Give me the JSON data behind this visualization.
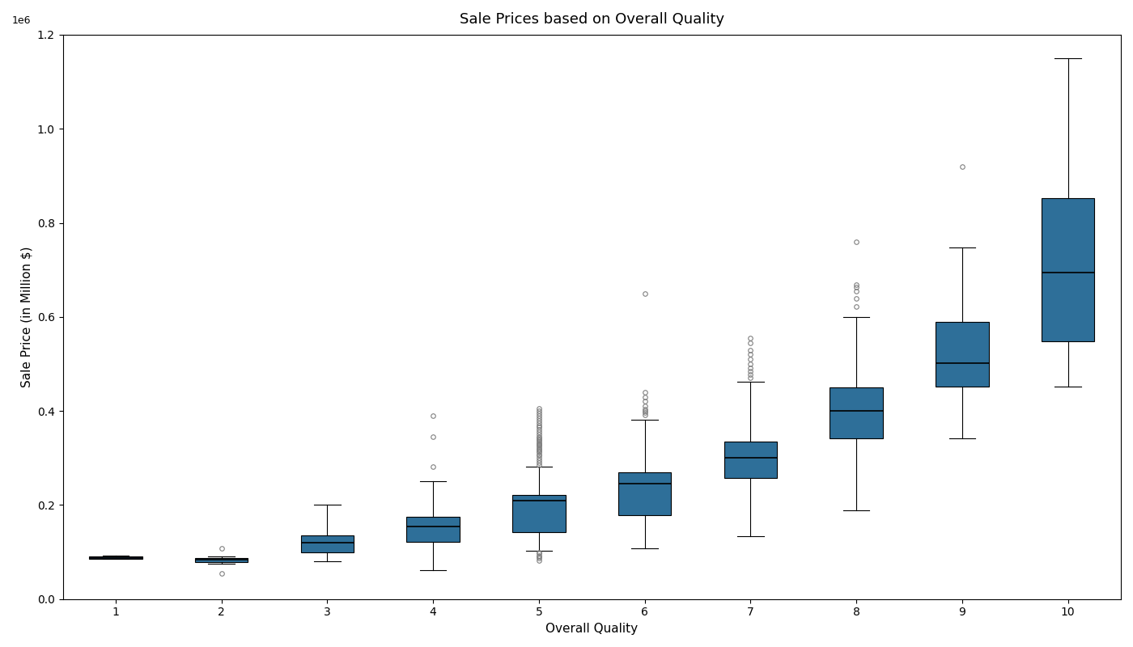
{
  "title": "Sale Prices based on Overall Quality",
  "xlabel": "Overall Quality",
  "ylabel": "Sale Price (in Million $)",
  "box_color": "#2e6f99",
  "background_color": "white",
  "ylim": [
    0,
    1200000
  ],
  "yticks": [
    0,
    200000,
    400000,
    600000,
    800000,
    1000000,
    1200000
  ],
  "quality_levels": [
    1,
    2,
    3,
    4,
    5,
    6,
    7,
    8,
    9,
    10
  ],
  "xlim": [
    0.5,
    10.5
  ],
  "box_width": 0.5,
  "box_data": {
    "1": {
      "q1": 86000,
      "median": 88000,
      "q3": 90000,
      "whislo": 85000,
      "whishi": 92000,
      "fliers": []
    },
    "2": {
      "q1": 78000,
      "median": 83000,
      "q3": 88000,
      "whislo": 76000,
      "whishi": 91000,
      "fliers": [
        107500,
        55000
      ]
    },
    "3": {
      "q1": 100000,
      "median": 120000,
      "q3": 135000,
      "whislo": 80000,
      "whishi": 200000,
      "fliers": []
    },
    "4": {
      "q1": 122000,
      "median": 155000,
      "q3": 175000,
      "whislo": 62000,
      "whishi": 250000,
      "fliers": [
        282000,
        345000,
        390000
      ]
    },
    "5": {
      "q1": 143000,
      "median": 210000,
      "q3": 222000,
      "whislo": 103000,
      "whishi": 282000,
      "fliers": [
        285000,
        290000,
        295000,
        300000,
        305000,
        308000,
        312000,
        315000,
        318000,
        320000,
        323000,
        326000,
        328000,
        330000,
        332000,
        335000,
        338000,
        340000,
        343000,
        346000,
        350000,
        355000,
        360000,
        365000,
        370000,
        375000,
        380000,
        385000,
        390000,
        395000,
        400000,
        405000,
        82000,
        88000,
        91000,
        93000,
        97000,
        100000
      ]
    },
    "6": {
      "q1": 178000,
      "median": 245000,
      "q3": 270000,
      "whislo": 108000,
      "whishi": 382000,
      "fliers": [
        392000,
        396000,
        400000,
        404000,
        410000,
        420000,
        430000,
        440000,
        650000
      ]
    },
    "7": {
      "q1": 258000,
      "median": 300000,
      "q3": 335000,
      "whislo": 133000,
      "whishi": 462000,
      "fliers": [
        470000,
        478000,
        485000,
        492000,
        500000,
        510000,
        520000,
        530000,
        545000,
        555000
      ]
    },
    "8": {
      "q1": 342000,
      "median": 400000,
      "q3": 450000,
      "whislo": 188000,
      "whishi": 600000,
      "fliers": [
        622000,
        640000,
        655000,
        663000,
        668000,
        760000
      ]
    },
    "9": {
      "q1": 452000,
      "median": 502000,
      "q3": 590000,
      "whislo": 342000,
      "whishi": 748000,
      "fliers": [
        920000
      ]
    },
    "10": {
      "q1": 548000,
      "median": 695000,
      "q3": 852000,
      "whislo": 452000,
      "whishi": 1150000,
      "fliers": []
    }
  }
}
